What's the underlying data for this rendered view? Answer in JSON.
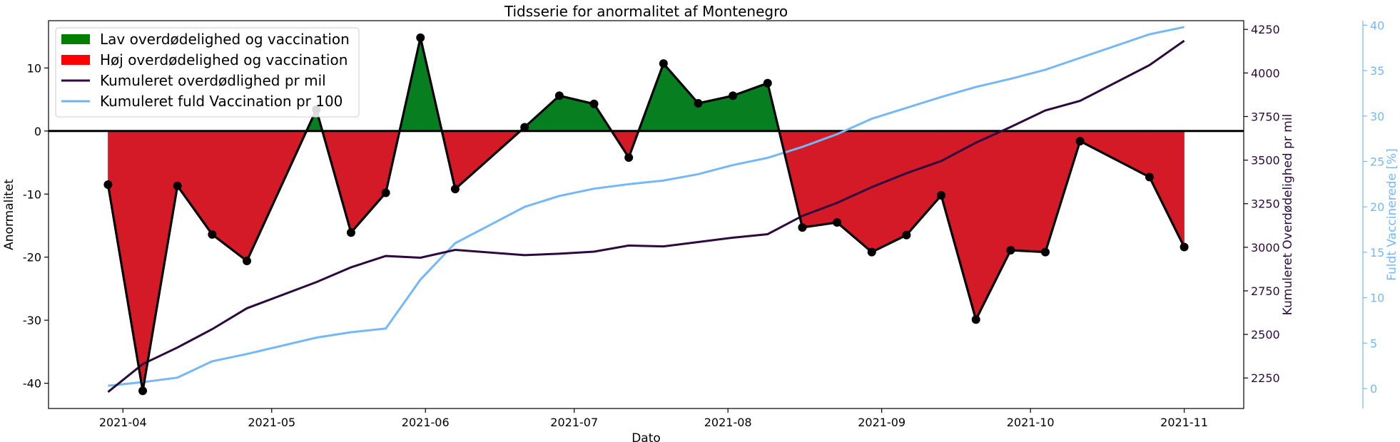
{
  "chart_data": {
    "type": "line",
    "title": "Tidsserie for anormalitet af Montenegro",
    "xlabel": "Dato",
    "ylabel": "Anormalitet",
    "ylabel_right": "Kumuleret Overdødelighed pr mil",
    "ylabel_right2": "Fuldt Vaccinerede [%]",
    "x_ticks": [
      "2021-04",
      "2021-05",
      "2021-06",
      "2021-07",
      "2021-08",
      "2021-09",
      "2021-10",
      "2021-11"
    ],
    "y_ticks": [
      10,
      0,
      -10,
      -20,
      -30,
      -40
    ],
    "y_ticks_right": [
      4250,
      4000,
      3750,
      3500,
      3250,
      3000,
      2750,
      2500,
      2250
    ],
    "y_ticks_right2": [
      40,
      35,
      30,
      25,
      20,
      15,
      10,
      5,
      0
    ],
    "ylim": [
      -44,
      17.5
    ],
    "ylim_right": [
      2075,
      4300
    ],
    "ylim_right2": [
      -2.2,
      40.5
    ],
    "xlim": [
      "2021-03-17",
      "2021-11-13"
    ],
    "legend_position": "top-left",
    "legend": [
      {
        "label": "Lav overdødelighed og vaccination",
        "kind": "patch",
        "color": "#007f00"
      },
      {
        "label": "Høj overdødelighed og vaccination",
        "kind": "patch",
        "color": "#ff0000"
      },
      {
        "label": "Kumuleret overdødlighed pr mil",
        "kind": "line",
        "color": "#2d0a3e"
      },
      {
        "label": "Kumuleret fuld Vaccination pr 100",
        "kind": "line",
        "color": "#6cb5f5"
      }
    ],
    "colors": {
      "positive_fill": "#077f20",
      "negative_fill": "#d41a27",
      "anomaly_line": "#000000",
      "excess_line": "#2d0a3e",
      "vaccine_line": "#74b8f7"
    },
    "x": [
      "2021-03-29",
      "2021-04-05",
      "2021-04-12",
      "2021-04-19",
      "2021-04-26",
      "2021-05-10",
      "2021-05-17",
      "2021-05-24",
      "2021-05-31",
      "2021-06-07",
      "2021-06-21",
      "2021-06-28",
      "2021-07-05",
      "2021-07-12",
      "2021-07-19",
      "2021-07-26",
      "2021-08-02",
      "2021-08-09",
      "2021-08-16",
      "2021-08-23",
      "2021-08-30",
      "2021-09-06",
      "2021-09-13",
      "2021-09-20",
      "2021-09-27",
      "2021-10-04",
      "2021-10-11",
      "2021-10-25",
      "2021-11-01"
    ],
    "series": [
      {
        "name": "Anormalitet",
        "axis": "left",
        "values": [
          -8.5,
          -41.2,
          -8.7,
          -16.4,
          -20.6,
          3.4,
          -16.1,
          -9.8,
          14.8,
          -9.2,
          0.6,
          5.6,
          4.3,
          -4.2,
          10.7,
          4.4,
          5.6,
          7.6,
          -15.3,
          -14.5,
          -19.2,
          -16.5,
          -10.2,
          -29.9,
          -18.9,
          -19.2,
          -1.6,
          -7.3,
          -18.4
        ]
      },
      {
        "name": "Kumuleret overdødlighed pr mil",
        "axis": "right",
        "x": [
          "2021-03-29",
          "2021-04-05",
          "2021-04-12",
          "2021-04-19",
          "2021-04-26",
          "2021-05-10",
          "2021-05-17",
          "2021-05-24",
          "2021-05-31",
          "2021-06-07",
          "2021-06-21",
          "2021-06-28",
          "2021-07-05",
          "2021-07-12",
          "2021-07-19",
          "2021-07-26",
          "2021-08-02",
          "2021-08-09",
          "2021-08-16",
          "2021-08-23",
          "2021-08-30",
          "2021-09-06",
          "2021-09-13",
          "2021-09-20",
          "2021-09-27",
          "2021-10-04",
          "2021-10-11",
          "2021-10-25",
          "2021-11-01"
        ],
        "values": [
          2170,
          2330,
          2425,
          2530,
          2650,
          2800,
          2885,
          2950,
          2940,
          2985,
          2955,
          2963,
          2975,
          3010,
          3005,
          3030,
          3055,
          3075,
          3180,
          3255,
          3345,
          3425,
          3495,
          3600,
          3690,
          3785,
          3840,
          4045,
          4185
        ]
      },
      {
        "name": "Kumuleret fuld Vaccination pr 100",
        "axis": "right2",
        "x": [
          "2021-03-29",
          "2021-04-05",
          "2021-04-12",
          "2021-04-19",
          "2021-04-26",
          "2021-05-10",
          "2021-05-17",
          "2021-05-24",
          "2021-05-31",
          "2021-06-07",
          "2021-06-14",
          "2021-06-21",
          "2021-06-28",
          "2021-07-05",
          "2021-07-12",
          "2021-07-19",
          "2021-07-26",
          "2021-08-02",
          "2021-08-09",
          "2021-08-16",
          "2021-08-23",
          "2021-08-30",
          "2021-09-06",
          "2021-09-13",
          "2021-09-20",
          "2021-09-27",
          "2021-10-04",
          "2021-10-11",
          "2021-10-18",
          "2021-10-25",
          "2021-11-01"
        ],
        "values": [
          0.3,
          0.7,
          1.2,
          3.0,
          3.8,
          5.6,
          6.2,
          6.6,
          12.0,
          16.0,
          18.0,
          20.0,
          21.2,
          22.0,
          22.5,
          22.9,
          23.6,
          24.6,
          25.4,
          26.6,
          28.0,
          29.7,
          30.9,
          32.1,
          33.2,
          34.1,
          35.1,
          36.4,
          37.7,
          39.0,
          39.8
        ]
      }
    ]
  }
}
